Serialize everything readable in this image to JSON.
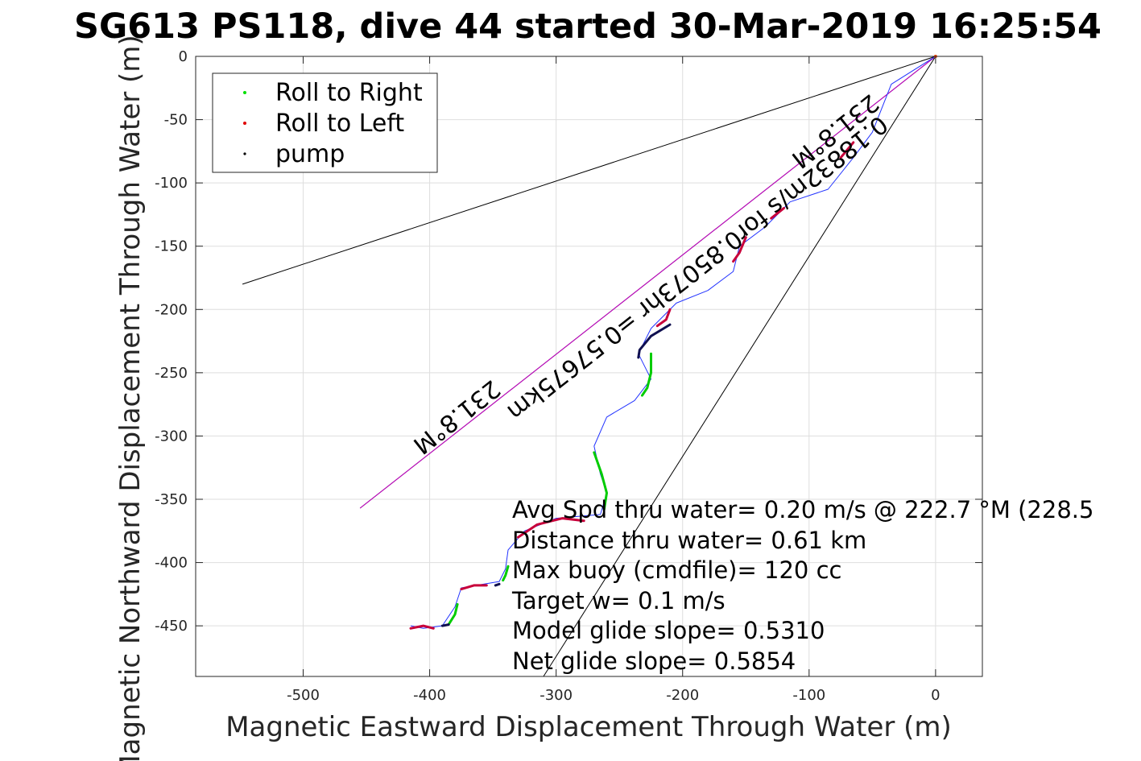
{
  "chart_data": {
    "type": "line",
    "title": "SG613 PS118, dive 44 started 30-Mar-2019 16:25:54",
    "xlabel": "Magnetic Eastward Displacement Through Water (m)",
    "ylabel": "Magnetic Northward Displacement Through Water (m)",
    "xlim": [
      -585,
      37
    ],
    "ylim": [
      -490,
      0
    ],
    "xticks": [
      -500,
      -400,
      -300,
      -200,
      -100,
      0
    ],
    "yticks": [
      0,
      -50,
      -100,
      -150,
      -200,
      -250,
      -300,
      -350,
      -400,
      -450
    ],
    "grid": true,
    "legend": {
      "placement": "top-left",
      "entries": [
        {
          "label": "Roll to Right",
          "color": "#00e000"
        },
        {
          "label": "Roll to Left",
          "color": "#e00000"
        },
        {
          "label": "pump",
          "color": "#000000"
        }
      ]
    },
    "track": [
      [
        0,
        0
      ],
      [
        -35,
        -22
      ],
      [
        -50,
        -60
      ],
      [
        -65,
        -80
      ],
      [
        -85,
        -105
      ],
      [
        -115,
        -115
      ],
      [
        -135,
        -135
      ],
      [
        -155,
        -150
      ],
      [
        -160,
        -170
      ],
      [
        -180,
        -185
      ],
      [
        -205,
        -195
      ],
      [
        -225,
        -215
      ],
      [
        -235,
        -235
      ],
      [
        -225,
        -255
      ],
      [
        -238,
        -272
      ],
      [
        -260,
        -285
      ],
      [
        -270,
        -308
      ],
      [
        -265,
        -330
      ],
      [
        -260,
        -345
      ],
      [
        -265,
        -362
      ],
      [
        -300,
        -365
      ],
      [
        -325,
        -375
      ],
      [
        -338,
        -390
      ],
      [
        -340,
        -405
      ],
      [
        -345,
        -415
      ],
      [
        -375,
        -420
      ],
      [
        -380,
        -435
      ],
      [
        -390,
        -450
      ],
      [
        -405,
        -452
      ],
      [
        -415,
        -450
      ]
    ],
    "roll_right_segments": [
      [
        [
          -225,
          -235
        ],
        [
          -225,
          -250
        ],
        [
          -228,
          -262
        ],
        [
          -232,
          -268
        ]
      ],
      [
        [
          -270,
          -313
        ],
        [
          -264,
          -330
        ],
        [
          -260,
          -345
        ],
        [
          -262,
          -358
        ]
      ],
      [
        [
          -338,
          -403
        ],
        [
          -340,
          -410
        ],
        [
          -342,
          -414
        ]
      ],
      [
        [
          -378,
          -433
        ],
        [
          -380,
          -441
        ],
        [
          -385,
          -449
        ]
      ]
    ],
    "roll_left_segments": [
      [
        [
          -65,
          -68
        ],
        [
          -75,
          -80
        ]
      ],
      [
        [
          -120,
          -120
        ],
        [
          -130,
          -128
        ]
      ],
      [
        [
          -150,
          -143
        ],
        [
          -155,
          -155
        ],
        [
          -160,
          -162
        ]
      ],
      [
        [
          -210,
          -200
        ],
        [
          -213,
          -208
        ],
        [
          -220,
          -213
        ]
      ],
      [
        [
          -278,
          -367
        ],
        [
          -295,
          -365
        ],
        [
          -315,
          -370
        ],
        [
          -330,
          -380
        ]
      ],
      [
        [
          -355,
          -418
        ],
        [
          -365,
          -418
        ],
        [
          -375,
          -421
        ]
      ],
      [
        [
          -415,
          -452
        ],
        [
          -405,
          -450
        ],
        [
          -397,
          -452
        ]
      ]
    ],
    "pump_segments": [
      [
        [
          -210,
          -212
        ],
        [
          -225,
          -221
        ],
        [
          -234,
          -232
        ],
        [
          -235,
          -238
        ]
      ],
      [
        [
          -345,
          -417
        ],
        [
          -348,
          -418
        ]
      ],
      [
        [
          -385,
          -449
        ],
        [
          -390,
          -450
        ]
      ]
    ],
    "reference_lines": [
      {
        "color": "#000000",
        "from": [
          0,
          0
        ],
        "to": [
          -548,
          -180
        ]
      },
      {
        "color": "#000000",
        "from": [
          0,
          0
        ],
        "to": [
          -310,
          -490
        ]
      },
      {
        "color": "#000000",
        "from": [
          0,
          0
        ],
        "to": [
          -455,
          -357
        ]
      },
      {
        "color": "#cc00cc",
        "from": [
          0,
          0
        ],
        "to": [
          -455,
          -357
        ]
      }
    ],
    "rotated_labels": [
      "231.8°M",
      "0.18832m/s for0.85073hr =0.57675km",
      "231.8°M"
    ],
    "annotations": [
      "Avg Spd thru water=  0.20 m/s @ 222.7 °M (228.5",
      "Distance thru water=  0.61 km",
      "Max buoy (cmdfile)= 120 cc",
      "Target w= 0.1 m/s",
      "Model glide slope= 0.5310",
      "Net glide slope= 0.5854"
    ]
  }
}
